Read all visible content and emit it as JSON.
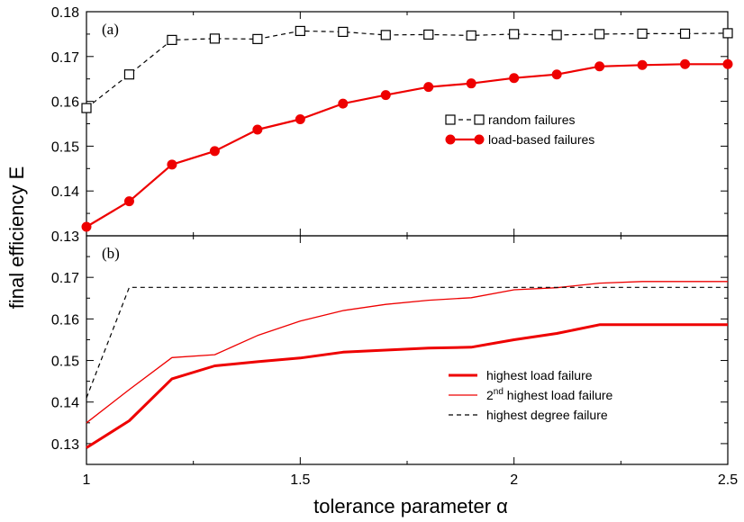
{
  "figure": {
    "ylabel": "final efficiency E",
    "xlabel": "tolerance parameter α"
  },
  "chart_data": [
    {
      "type": "line",
      "panel_label": "(a)",
      "xlim": [
        1,
        2.5
      ],
      "ylim": [
        0.13,
        0.18
      ],
      "x_ticks": [
        1,
        1.5,
        2,
        2.5
      ],
      "x_tick_labels": [
        "",
        "",
        "",
        ""
      ],
      "y_ticks": [
        0.13,
        0.14,
        0.15,
        0.16,
        0.17,
        0.18
      ],
      "y_tick_labels": [
        "0.13",
        "0.14",
        "0.15",
        "0.16",
        "0.17",
        "0.18"
      ],
      "legend_position": "right",
      "x": [
        1.0,
        1.1,
        1.2,
        1.3,
        1.4,
        1.5,
        1.6,
        1.7,
        1.8,
        1.9,
        2.0,
        2.1,
        2.2,
        2.3,
        2.4,
        2.5
      ],
      "series": [
        {
          "name": "random failures",
          "color": "#000000",
          "line_style": "dashed",
          "marker": "open-square",
          "values": [
            0.1585,
            0.166,
            0.1737,
            0.174,
            0.1739,
            0.1757,
            0.1755,
            0.1748,
            0.1749,
            0.1747,
            0.175,
            0.1748,
            0.175,
            0.1751,
            0.1751,
            0.1752
          ]
        },
        {
          "name": "load-based failures",
          "color": "#ee0000",
          "line_style": "solid",
          "marker": "filled-circle",
          "values": [
            0.132,
            0.1377,
            0.1459,
            0.1489,
            0.1537,
            0.156,
            0.1595,
            0.1614,
            0.1632,
            0.164,
            0.1652,
            0.166,
            0.1678,
            0.1681,
            0.1683,
            0.1683
          ]
        }
      ]
    },
    {
      "type": "line",
      "panel_label": "(b)",
      "xlim": [
        1,
        2.5
      ],
      "ylim": [
        0.125,
        0.18
      ],
      "x_ticks": [
        1,
        1.5,
        2,
        2.5
      ],
      "x_tick_labels": [
        "1",
        "1.5",
        "2",
        "2.5"
      ],
      "y_ticks": [
        0.13,
        0.14,
        0.15,
        0.16,
        0.17
      ],
      "y_tick_labels": [
        "0.13",
        "0.14",
        "0.15",
        "0.16",
        "0.17"
      ],
      "legend_position": "bottom-right",
      "x": [
        1.0,
        1.1,
        1.2,
        1.3,
        1.4,
        1.5,
        1.6,
        1.7,
        1.8,
        1.9,
        2.0,
        2.1,
        2.2,
        2.3,
        2.4,
        2.5
      ],
      "series": [
        {
          "name": "highest load failure",
          "legend_parts": [
            "highest load failure"
          ],
          "color": "#ee0000",
          "line_style": "solid-thick",
          "values": [
            0.129,
            0.1355,
            0.1456,
            0.1487,
            0.1497,
            0.1506,
            0.152,
            0.1525,
            0.153,
            0.1532,
            0.155,
            0.1565,
            0.1586,
            0.1586,
            0.1586,
            0.1586
          ]
        },
        {
          "name": "2nd highest load failure",
          "legend_parts": [
            "2",
            "nd",
            " highest load failure"
          ],
          "color": "#ee0000",
          "line_style": "solid-thin",
          "values": [
            0.135,
            0.143,
            0.1507,
            0.1514,
            0.156,
            0.1595,
            0.162,
            0.1635,
            0.1645,
            0.1651,
            0.167,
            0.1675,
            0.1686,
            0.169,
            0.169,
            0.169
          ]
        },
        {
          "name": "highest degree failure",
          "legend_parts": [
            "highest degree failure"
          ],
          "color": "#000000",
          "line_style": "dashed",
          "values": [
            0.141,
            0.1676,
            0.1676,
            0.1676,
            0.1676,
            0.1676,
            0.1676,
            0.1676,
            0.1676,
            0.1676,
            0.1676,
            0.1676,
            0.1676,
            0.1676,
            0.1676,
            0.1676
          ]
        }
      ]
    }
  ]
}
